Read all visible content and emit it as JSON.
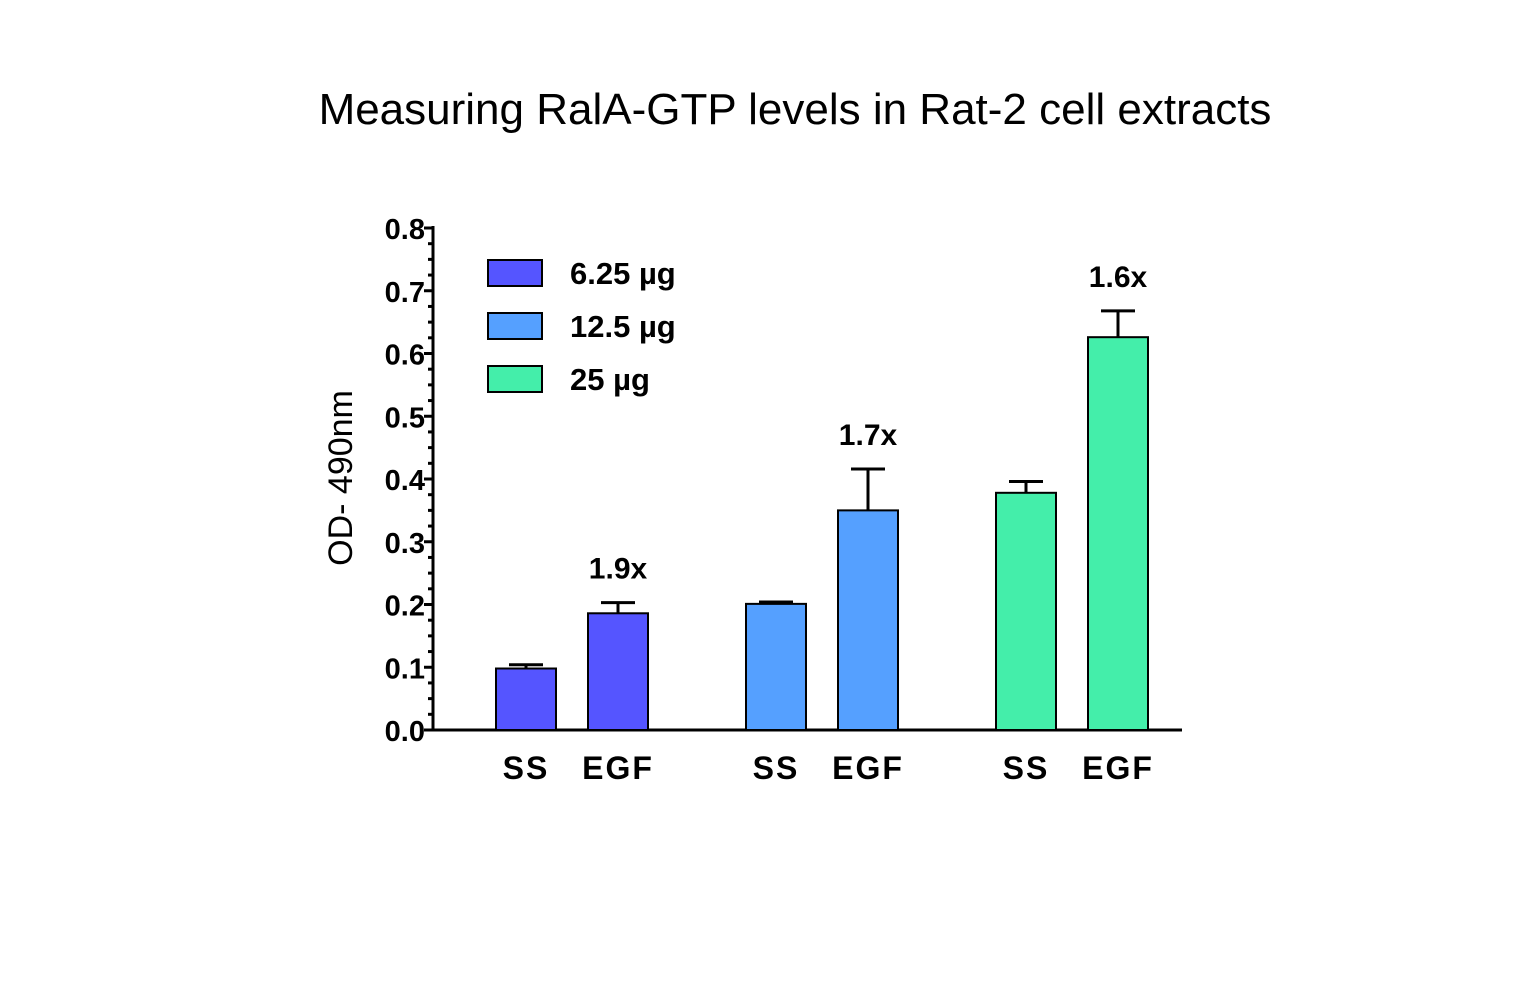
{
  "chart_data": {
    "type": "bar",
    "title": "Measuring RalA-GTP levels in Rat-2 cell extracts",
    "ylabel": "OD- 490nm",
    "xlabel": "",
    "ylim": [
      0,
      0.8
    ],
    "yticks": [
      "0.0",
      "0.1",
      "0.2",
      "0.3",
      "0.4",
      "0.5",
      "0.6",
      "0.7",
      "0.8"
    ],
    "legend_position": "top-left",
    "groups": [
      {
        "name": "6.25 µg",
        "color": "#5555ff",
        "categories": [
          "SS",
          "EGF"
        ],
        "values": [
          0.098,
          0.186
        ],
        "errors": [
          0.006,
          0.017
        ],
        "fold_label": "1.9x"
      },
      {
        "name": "12.5 µg",
        "color": "#55a0ff",
        "categories": [
          "SS",
          "EGF"
        ],
        "values": [
          0.201,
          0.35
        ],
        "errors": [
          0.003,
          0.066
        ],
        "fold_label": "1.7x"
      },
      {
        "name": "25 µg",
        "color": "#44eeaa",
        "categories": [
          "SS",
          "EGF"
        ],
        "values": [
          0.378,
          0.626
        ],
        "errors": [
          0.018,
          0.042
        ],
        "fold_label": "1.6x"
      }
    ]
  }
}
